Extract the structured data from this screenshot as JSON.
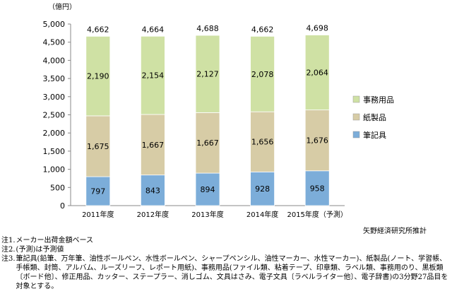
{
  "unit_label": "（億円）",
  "source_label": "矢野経済研究所推計",
  "notes": [
    {
      "label": "注1.",
      "text": "メーカー出荷金額ベース"
    },
    {
      "label": "注2.",
      "text": "(予測)は予測値"
    },
    {
      "label": "注3.",
      "text": "筆記具(鉛筆、万年筆、油性ボールペン、水性ボールペン、シャープペンシル、油性マーカー、水性マーカー)、紙製品(ノート、学習帳、手帳類、封筒、アルバム、ルーズリーフ、レポート用紙)、事務用品(ファイル類、粘着テープ、印章類、ラベル類、事務用のり、黒板類〔ボード他〕、修正用品、カッター、ステープラー、消しゴム、文具はさみ、電子文具〔ラベルライター他〕、電子辞書)の3分野27品目を対象とする。"
    }
  ],
  "chart_data": {
    "type": "bar",
    "stacked": true,
    "categories": [
      "2011年度",
      "2012年度",
      "2013年度",
      "2014年度",
      "2015年度（予測）"
    ],
    "series": [
      {
        "name": "筆記具",
        "values": [
          797,
          843,
          894,
          928,
          958
        ],
        "color": "#7cadd9"
      },
      {
        "name": "紙製品",
        "values": [
          1675,
          1667,
          1667,
          1656,
          1676
        ],
        "color": "#d7cca6"
      },
      {
        "name": "事務用品",
        "values": [
          2190,
          2154,
          2127,
          2078,
          2064
        ],
        "color": "#cfe1a4"
      }
    ],
    "totals": [
      4662,
      4664,
      4688,
      4662,
      4698
    ],
    "ylim": [
      0,
      5000
    ],
    "yticks": [
      0,
      500,
      1000,
      1500,
      2000,
      2500,
      3000,
      3500,
      4000,
      4500,
      5000
    ],
    "ytick_labels": [
      "0",
      "500",
      "1,000",
      "1,500",
      "2,000",
      "2,500",
      "3,000",
      "3,500",
      "4,000",
      "4,500",
      "5,000"
    ],
    "ylabel": "（億円）",
    "xlabel": "",
    "legend_position": "right",
    "legend_order": [
      "事務用品",
      "紙製品",
      "筆記具"
    ],
    "grid": false
  }
}
